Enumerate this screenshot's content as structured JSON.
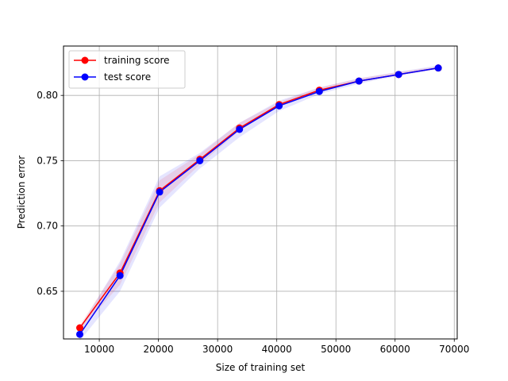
{
  "chart_data": {
    "type": "line",
    "xlabel": "Size of training set",
    "ylabel": "Prediction error",
    "xlim": [
      3950,
      70500
    ],
    "ylim": [
      0.6135,
      0.8378
    ],
    "xticks": [
      10000,
      20000,
      30000,
      40000,
      50000,
      60000,
      70000
    ],
    "xtick_labels": [
      "10000",
      "20000",
      "30000",
      "40000",
      "50000",
      "60000",
      "70000"
    ],
    "yticks": [
      0.65,
      0.7,
      0.75,
      0.8
    ],
    "ytick_labels": [
      "0.65",
      "0.70",
      "0.75",
      "0.80"
    ],
    "grid": true,
    "legend_position": "upper-left",
    "x": [
      6700,
      13500,
      20200,
      27000,
      33700,
      40400,
      47200,
      53900,
      60600,
      67300
    ],
    "series": [
      {
        "name": "training score",
        "color": "#ff0000",
        "values": [
          0.622,
          0.664,
          0.727,
          0.751,
          0.775,
          0.793,
          0.804,
          0.811,
          0.816,
          0.821
        ],
        "band_lower": [
          0.62,
          0.655,
          0.718,
          0.747,
          0.773,
          0.792,
          0.803,
          0.81,
          0.816,
          0.821
        ],
        "band_upper": [
          0.624,
          0.671,
          0.735,
          0.755,
          0.779,
          0.795,
          0.806,
          0.813,
          0.818,
          0.822
        ]
      },
      {
        "name": "test score",
        "color": "#0000ff",
        "values": [
          0.617,
          0.662,
          0.726,
          0.75,
          0.774,
          0.792,
          0.803,
          0.811,
          0.816,
          0.821
        ],
        "band_lower": [
          0.612,
          0.65,
          0.714,
          0.744,
          0.768,
          0.788,
          0.801,
          0.809,
          0.815,
          0.82
        ],
        "band_upper": [
          0.622,
          0.673,
          0.738,
          0.756,
          0.779,
          0.796,
          0.806,
          0.813,
          0.818,
          0.823
        ]
      }
    ]
  }
}
